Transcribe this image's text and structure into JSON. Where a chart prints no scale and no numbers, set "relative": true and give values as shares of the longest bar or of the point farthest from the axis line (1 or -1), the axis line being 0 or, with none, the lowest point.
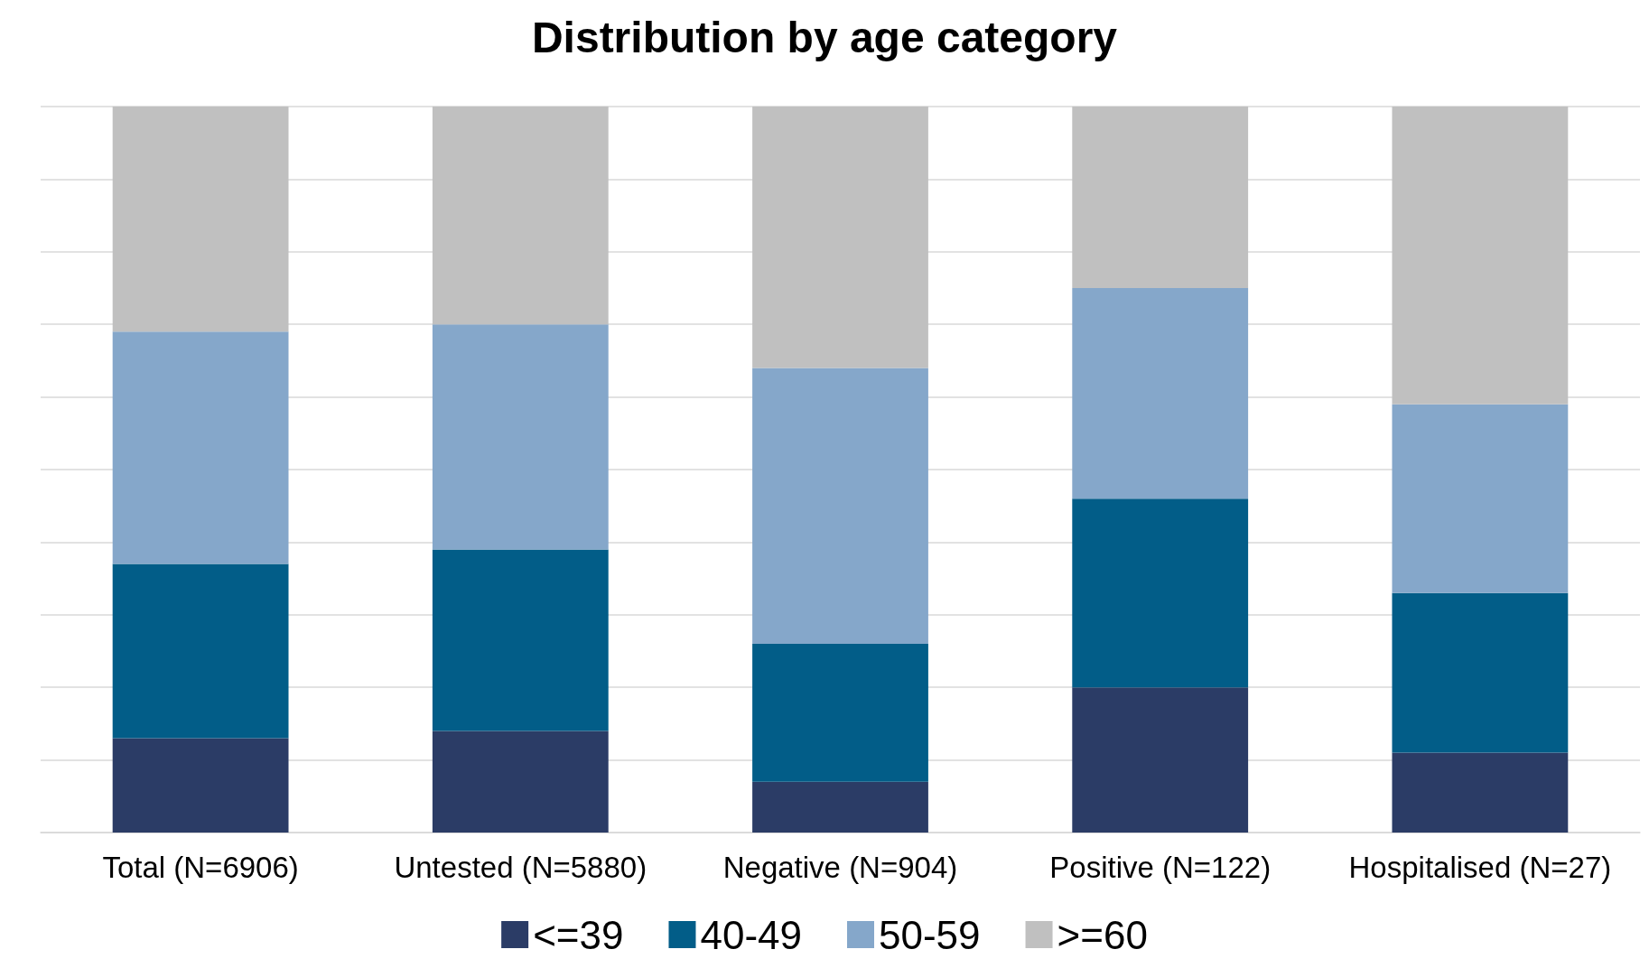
{
  "chart_data": {
    "type": "bar",
    "title": "Distribution by age category",
    "categories": [
      "Total (N=6906)",
      "Untested (N=5880)",
      "Negative (N=904)",
      "Positive (N=122)",
      "Hospitalised (N=27)"
    ],
    "stacked": true,
    "relative": true,
    "grid": "y",
    "legend": "bottom",
    "series": [
      {
        "name": "<=39",
        "color": "#2b3c66",
        "values": [
          0.13,
          0.14,
          0.07,
          0.2,
          0.11
        ]
      },
      {
        "name": "40-49",
        "color": "#025d88",
        "values": [
          0.24,
          0.25,
          0.19,
          0.26,
          0.22
        ]
      },
      {
        "name": "50-59",
        "color": "#85a7ca",
        "values": [
          0.32,
          0.31,
          0.38,
          0.29,
          0.26
        ]
      },
      {
        "name": ">=60",
        "color": "#c0c0c0",
        "values": [
          0.31,
          0.3,
          0.36,
          0.25,
          0.41
        ]
      }
    ]
  }
}
